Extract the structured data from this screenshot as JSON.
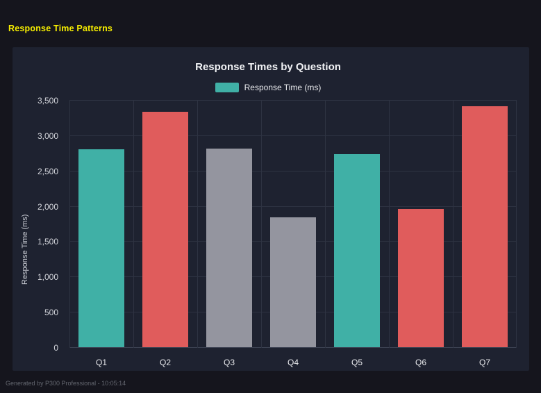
{
  "page": {
    "title": "Response Time Patterns",
    "footer": "Generated by P300 Professional - 10:05:14"
  },
  "colors": {
    "teal": "#40b0a6",
    "red": "#e05c5c",
    "gray": "#94959f",
    "panel_bg": "#1e2230",
    "page_bg": "#15151d",
    "title_yellow": "#f7ee00"
  },
  "chart_data": {
    "type": "bar",
    "title": "Response Times by Question",
    "legend": "Response Time (ms)",
    "ylabel": "Response Time (ms)",
    "xlabel": "",
    "categories": [
      "Q1",
      "Q2",
      "Q3",
      "Q4",
      "Q5",
      "Q6",
      "Q7"
    ],
    "values": [
      2800,
      3330,
      2810,
      1840,
      2730,
      1960,
      3410
    ],
    "bar_colors": [
      "#40b0a6",
      "#e05c5c",
      "#94959f",
      "#94959f",
      "#40b0a6",
      "#e05c5c",
      "#e05c5c"
    ],
    "ylim": [
      0,
      3500
    ],
    "ytick_interval": 500,
    "ytick_labels": [
      "0",
      "500",
      "1,000",
      "1,500",
      "2,000",
      "2,500",
      "3,000",
      "3,500"
    ],
    "grid": true,
    "legend_position": "top"
  }
}
